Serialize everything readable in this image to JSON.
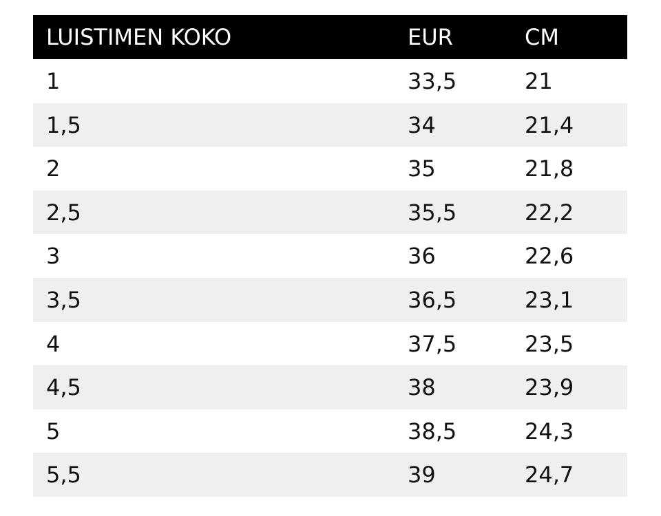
{
  "table": {
    "header": [
      "LUISTIMEN KOKO",
      "EUR",
      "CM"
    ],
    "rows": [
      [
        "1",
        "33,5",
        "21"
      ],
      [
        "1,5",
        "34",
        "21,4"
      ],
      [
        "2",
        "35",
        "21,8"
      ],
      [
        "2,5",
        "35,5",
        "22,2"
      ],
      [
        "3",
        "36",
        "22,6"
      ],
      [
        "3,5",
        "36,5",
        "23,1"
      ],
      [
        "4",
        "37,5",
        "23,5"
      ],
      [
        "4,5",
        "38",
        "23,9"
      ],
      [
        "5",
        "38,5",
        "24,3"
      ],
      [
        "5,5",
        "39",
        "24,7"
      ]
    ]
  }
}
